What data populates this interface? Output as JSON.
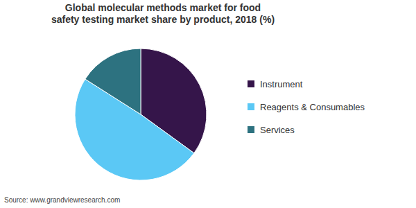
{
  "chart_data": {
    "type": "pie",
    "title": "Global molecular methods market for food safety testing market share by product, 2018 (%)",
    "categories": [
      "Instrument",
      "Reagents & Consumables",
      "Services"
    ],
    "values": [
      35,
      49,
      16
    ],
    "colors": [
      "#35154a",
      "#5bc8f5",
      "#2d7280"
    ],
    "legend": "right",
    "source": "Source: www.grandviewresearch.com"
  }
}
